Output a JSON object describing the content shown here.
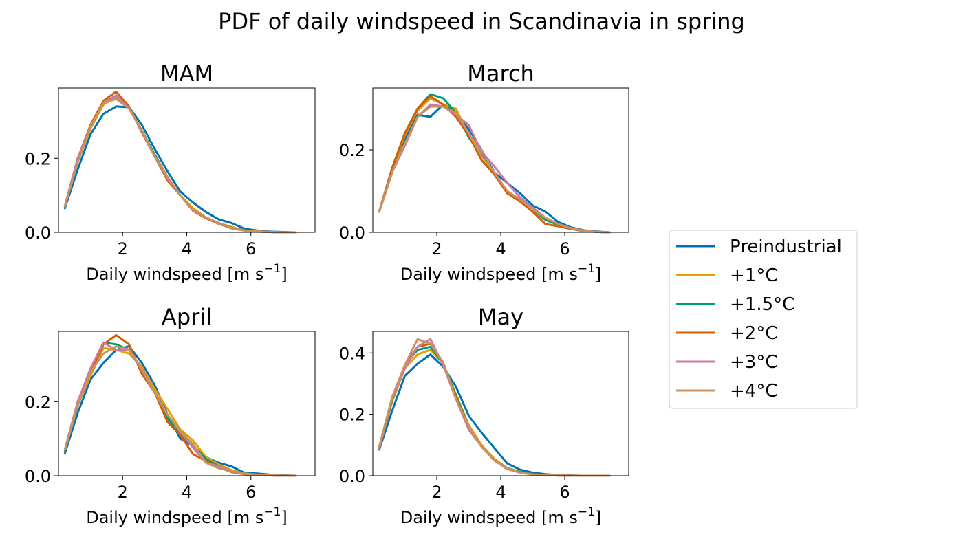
{
  "chart_data": {
    "suptitle": "PDF of daily windspeed in Scandinavia in spring",
    "type": "line",
    "series_meta": [
      {
        "name": "Preindustrial",
        "color": "#0072B2"
      },
      {
        "name": "+1°C",
        "color": "#E69F00"
      },
      {
        "name": "+1.5°C",
        "color": "#009E73"
      },
      {
        "name": "+2°C",
        "color": "#D55E00"
      },
      {
        "name": "+3°C",
        "color": "#CC79A7"
      },
      {
        "name": "+4°C",
        "color": "#CA9161"
      }
    ],
    "legend": {
      "placement": "right",
      "entries": [
        "Preindustrial",
        "+1°C",
        "+1.5°C",
        "+2°C",
        "+3°C",
        "+4°C"
      ]
    },
    "x": [
      0.2,
      0.6,
      1.0,
      1.4,
      1.8,
      2.2,
      2.6,
      3.0,
      3.4,
      3.8,
      4.2,
      4.6,
      5.0,
      5.4,
      5.8,
      6.2,
      6.6,
      7.0,
      7.4
    ],
    "xlabel": {
      "pre": "Daily windspeed [m s",
      "sup": "−1",
      "post": "]"
    },
    "xlim": [
      0,
      8
    ],
    "xticks": [
      "2",
      "4",
      "6"
    ],
    "panels": [
      {
        "title": "MAM",
        "ylim": [
          0,
          0.39
        ],
        "yticks": [
          "0.0",
          "0.2"
        ],
        "series": [
          {
            "name": "Preindustrial",
            "values": [
              0.065,
              0.17,
              0.265,
              0.32,
              0.34,
              0.338,
              0.29,
              0.225,
              0.165,
              0.11,
              0.08,
              0.055,
              0.035,
              0.025,
              0.01,
              0.005,
              0.002,
              0.001,
              0.0
            ]
          },
          {
            "name": "+1°C",
            "values": [
              0.07,
              0.19,
              0.28,
              0.345,
              0.365,
              0.335,
              0.275,
              0.21,
              0.15,
              0.1,
              0.065,
              0.04,
              0.025,
              0.015,
              0.005,
              0.003,
              0.001,
              0.0,
              0.0
            ]
          },
          {
            "name": "+1.5°C",
            "values": [
              0.07,
              0.2,
              0.285,
              0.35,
              0.37,
              0.335,
              0.275,
              0.21,
              0.145,
              0.1,
              0.06,
              0.04,
              0.025,
              0.012,
              0.005,
              0.002,
              0.001,
              0.0,
              0.0
            ]
          },
          {
            "name": "+2°C",
            "values": [
              0.07,
              0.2,
              0.29,
              0.355,
              0.38,
              0.34,
              0.27,
              0.205,
              0.14,
              0.1,
              0.058,
              0.038,
              0.023,
              0.011,
              0.005,
              0.002,
              0.001,
              0.0,
              0.0
            ]
          },
          {
            "name": "+3°C",
            "values": [
              0.07,
              0.2,
              0.285,
              0.35,
              0.37,
              0.335,
              0.275,
              0.205,
              0.145,
              0.1,
              0.06,
              0.04,
              0.024,
              0.012,
              0.005,
              0.002,
              0.001,
              0.0,
              0.0
            ]
          },
          {
            "name": "+4°C",
            "values": [
              0.07,
              0.19,
              0.285,
              0.35,
              0.36,
              0.335,
              0.275,
              0.205,
              0.15,
              0.1,
              0.06,
              0.04,
              0.025,
              0.012,
              0.005,
              0.002,
              0.001,
              0.0,
              0.0
            ]
          }
        ]
      },
      {
        "title": "March",
        "ylim": [
          0,
          0.35
        ],
        "yticks": [
          "0.0",
          "0.2"
        ],
        "series": [
          {
            "name": "Preindustrial",
            "values": [
              0.05,
              0.145,
              0.225,
              0.285,
              0.28,
              0.31,
              0.29,
              0.25,
              0.2,
              0.145,
              0.12,
              0.095,
              0.065,
              0.05,
              0.025,
              0.012,
              0.005,
              0.002,
              0.0
            ]
          },
          {
            "name": "+1°C",
            "values": [
              0.05,
              0.15,
              0.235,
              0.295,
              0.325,
              0.31,
              0.3,
              0.235,
              0.2,
              0.14,
              0.1,
              0.075,
              0.055,
              0.035,
              0.02,
              0.01,
              0.004,
              0.001,
              0.0
            ]
          },
          {
            "name": "+1.5°C",
            "values": [
              0.05,
              0.155,
              0.24,
              0.3,
              0.335,
              0.325,
              0.29,
              0.23,
              0.19,
              0.14,
              0.1,
              0.075,
              0.055,
              0.03,
              0.018,
              0.009,
              0.004,
              0.001,
              0.0
            ]
          },
          {
            "name": "+2°C",
            "values": [
              0.05,
              0.155,
              0.24,
              0.3,
              0.33,
              0.31,
              0.28,
              0.235,
              0.175,
              0.14,
              0.095,
              0.075,
              0.05,
              0.02,
              0.015,
              0.008,
              0.003,
              0.001,
              0.0
            ]
          },
          {
            "name": "+3°C",
            "values": [
              0.05,
              0.145,
              0.21,
              0.28,
              0.31,
              0.305,
              0.285,
              0.26,
              0.195,
              0.16,
              0.12,
              0.085,
              0.06,
              0.035,
              0.02,
              0.01,
              0.004,
              0.001,
              0.0
            ]
          },
          {
            "name": "+4°C",
            "values": [
              0.05,
              0.145,
              0.215,
              0.28,
              0.305,
              0.305,
              0.29,
              0.24,
              0.185,
              0.145,
              0.1,
              0.08,
              0.055,
              0.035,
              0.02,
              0.01,
              0.004,
              0.001,
              0.0
            ]
          }
        ]
      },
      {
        "title": "April",
        "ylim": [
          0,
          0.39
        ],
        "yticks": [
          "0.0",
          "0.2"
        ],
        "series": [
          {
            "name": "Preindustrial",
            "values": [
              0.06,
              0.17,
              0.26,
              0.305,
              0.34,
              0.35,
              0.305,
              0.245,
              0.165,
              0.1,
              0.08,
              0.05,
              0.035,
              0.025,
              0.008,
              0.006,
              0.003,
              0.001,
              0.0
            ]
          },
          {
            "name": "+1°C",
            "values": [
              0.065,
              0.19,
              0.27,
              0.345,
              0.34,
              0.33,
              0.295,
              0.235,
              0.18,
              0.125,
              0.095,
              0.05,
              0.03,
              0.015,
              0.006,
              0.003,
              0.001,
              0.0,
              0.0
            ]
          },
          {
            "name": "+1.5°C",
            "values": [
              0.065,
              0.19,
              0.28,
              0.36,
              0.355,
              0.34,
              0.285,
              0.225,
              0.155,
              0.11,
              0.08,
              0.045,
              0.025,
              0.012,
              0.005,
              0.002,
              0.001,
              0.0,
              0.0
            ]
          },
          {
            "name": "+2°C",
            "values": [
              0.07,
              0.2,
              0.28,
              0.355,
              0.38,
              0.355,
              0.275,
              0.225,
              0.145,
              0.11,
              0.058,
              0.04,
              0.022,
              0.01,
              0.004,
              0.002,
              0.001,
              0.0,
              0.0
            ]
          },
          {
            "name": "+3°C",
            "values": [
              0.07,
              0.2,
              0.29,
              0.36,
              0.34,
              0.34,
              0.285,
              0.225,
              0.165,
              0.12,
              0.075,
              0.035,
              0.025,
              0.012,
              0.005,
              0.002,
              0.001,
              0.0,
              0.0
            ]
          },
          {
            "name": "+4°C",
            "values": [
              0.07,
              0.19,
              0.28,
              0.33,
              0.35,
              0.34,
              0.29,
              0.225,
              0.165,
              0.12,
              0.085,
              0.035,
              0.02,
              0.012,
              0.005,
              0.002,
              0.001,
              0.0,
              0.0
            ]
          }
        ]
      },
      {
        "title": "May",
        "ylim": [
          0,
          0.47
        ],
        "yticks": [
          "0.0",
          "0.2",
          "0.4"
        ],
        "series": [
          {
            "name": "Preindustrial",
            "values": [
              0.085,
              0.21,
              0.325,
              0.365,
              0.395,
              0.355,
              0.29,
              0.195,
              0.14,
              0.09,
              0.04,
              0.02,
              0.01,
              0.005,
              0.002,
              0.001,
              0.0,
              0.0,
              0.0
            ]
          },
          {
            "name": "+1°C",
            "values": [
              0.09,
              0.24,
              0.35,
              0.395,
              0.41,
              0.365,
              0.265,
              0.165,
              0.1,
              0.055,
              0.025,
              0.012,
              0.005,
              0.002,
              0.001,
              0.0,
              0.0,
              0.0,
              0.0
            ]
          },
          {
            "name": "+1.5°C",
            "values": [
              0.09,
              0.245,
              0.36,
              0.41,
              0.42,
              0.365,
              0.26,
              0.16,
              0.095,
              0.05,
              0.025,
              0.012,
              0.005,
              0.002,
              0.001,
              0.0,
              0.0,
              0.0,
              0.0
            ]
          },
          {
            "name": "+2°C",
            "values": [
              0.09,
              0.25,
              0.36,
              0.42,
              0.43,
              0.365,
              0.255,
              0.155,
              0.095,
              0.05,
              0.025,
              0.01,
              0.004,
              0.002,
              0.001,
              0.0,
              0.0,
              0.0,
              0.0
            ]
          },
          {
            "name": "+3°C",
            "values": [
              0.09,
              0.25,
              0.35,
              0.42,
              0.445,
              0.36,
              0.25,
              0.15,
              0.095,
              0.05,
              0.022,
              0.01,
              0.004,
              0.002,
              0.001,
              0.0,
              0.0,
              0.0,
              0.0
            ]
          },
          {
            "name": "+4°C",
            "values": [
              0.095,
              0.255,
              0.36,
              0.445,
              0.43,
              0.37,
              0.25,
              0.16,
              0.095,
              0.05,
              0.025,
              0.01,
              0.004,
              0.002,
              0.001,
              0.0,
              0.0,
              0.0,
              0.0
            ]
          }
        ]
      }
    ]
  }
}
